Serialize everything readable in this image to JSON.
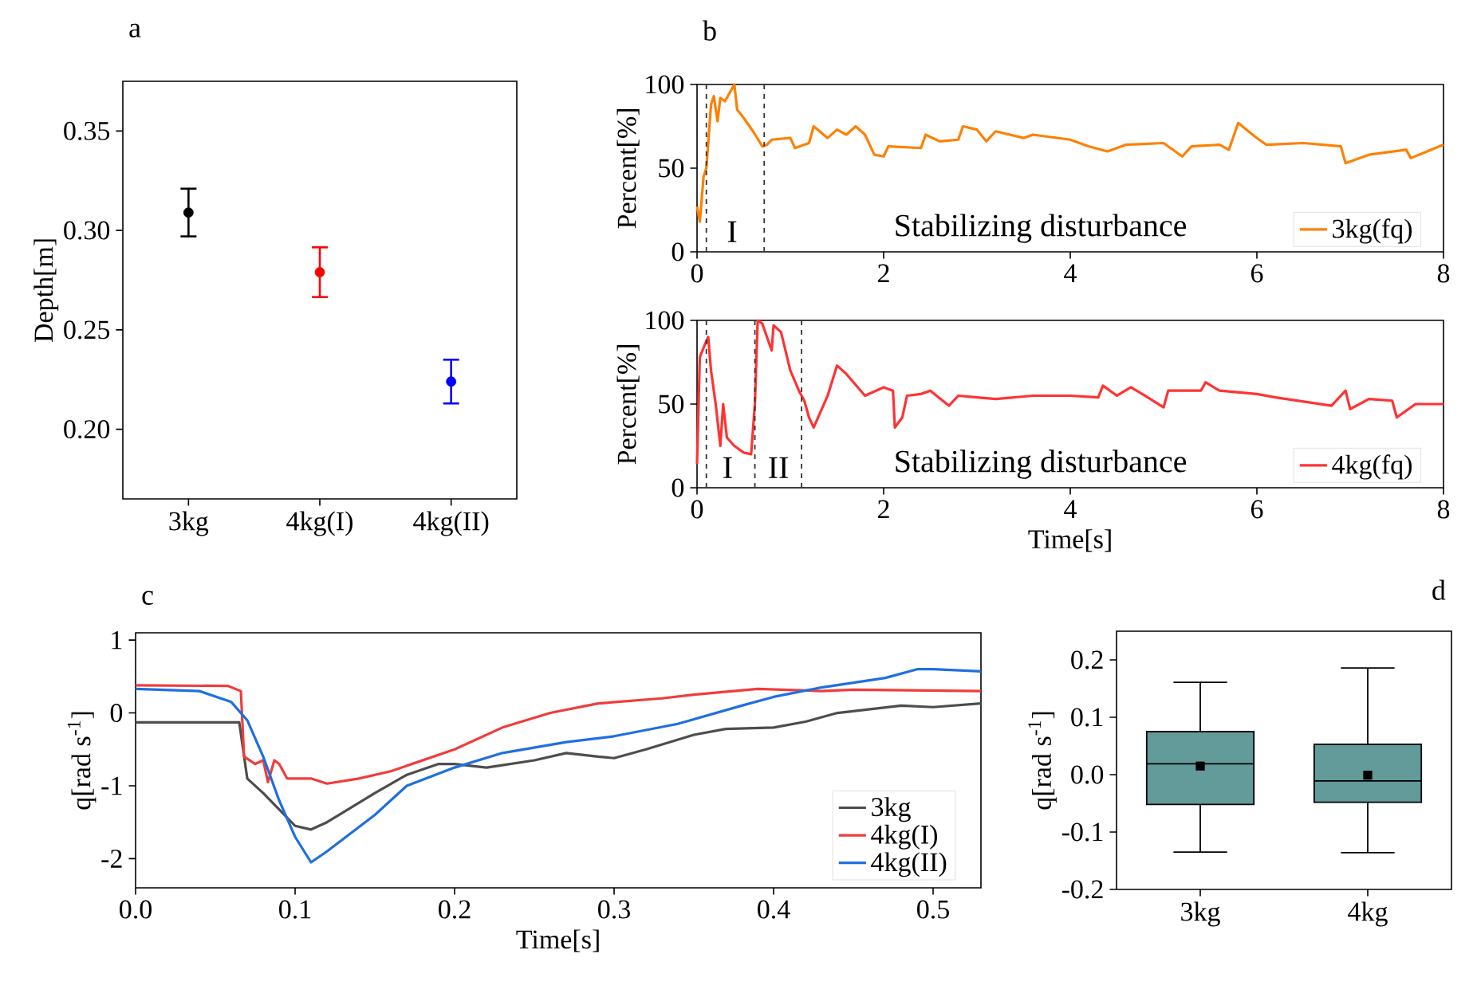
{
  "chart_data": [
    {
      "type": "scatter",
      "title": "a",
      "ylabel": "Depth[m]",
      "categories": [
        "3kg",
        "4kg(I)",
        "4kg(II)"
      ],
      "values": [
        0.309,
        0.279,
        0.224
      ],
      "colors": [
        "#000000",
        "#ff0000",
        "#0000ff"
      ],
      "errors": [
        0.012,
        0.0125,
        0.011
      ],
      "ylim": [
        0.165,
        0.375
      ],
      "yticks": [
        {
          "value": 0.2,
          "label": "0.20"
        },
        0.25,
        {
          "value": 0.3,
          "label": "0.30"
        },
        0.35
      ],
      "marker": "circle"
    },
    {
      "type": "line",
      "title": "b",
      "ylabel": "Percent[%]",
      "xlim": [
        0,
        8
      ],
      "ylim": [
        0,
        100
      ],
      "xticks": [
        0,
        2,
        4,
        6,
        8
      ],
      "yticks": [
        0,
        50,
        100
      ],
      "legend": "bottom right",
      "series": [
        {
          "name": "3kg(fq)",
          "color": "#ff8000",
          "x": [
            0,
            0.03,
            0.07,
            0.1,
            0.12,
            0.15,
            0.18,
            0.22,
            0.25,
            0.3,
            0.35,
            0.4,
            0.43,
            0.5,
            0.6,
            0.7,
            0.75,
            0.8,
            1.0,
            1.05,
            1.2,
            1.25,
            1.4,
            1.5,
            1.6,
            1.7,
            1.8,
            1.9,
            2.0,
            2.05,
            2.4,
            2.45,
            2.6,
            2.8,
            2.85,
            3.0,
            3.1,
            3.2,
            3.5,
            3.6,
            4.0,
            4.2,
            4.4,
            4.6,
            5.0,
            5.2,
            5.3,
            5.6,
            5.7,
            5.8,
            6.0,
            6.1,
            6.5,
            6.9,
            6.95,
            7.2,
            7.6,
            7.65,
            8.0
          ],
          "values": [
            27,
            18,
            45,
            50,
            65,
            88,
            93,
            78,
            92,
            90,
            95,
            100,
            85,
            80,
            72,
            63,
            64,
            67,
            68,
            62,
            65,
            75,
            68,
            73,
            70,
            75,
            70,
            58,
            57,
            63,
            62,
            70,
            66,
            67,
            75,
            73,
            66,
            72,
            68,
            70,
            67,
            63,
            60,
            64,
            65,
            57,
            63,
            64,
            61,
            77,
            68,
            64,
            65,
            63,
            53,
            58,
            61,
            56,
            64
          ]
        }
      ],
      "ref_lines": [
        {
          "axis": "x",
          "value": 0.1,
          "color": "#333333",
          "line_style": "dashed"
        },
        {
          "axis": "x",
          "value": 0.72,
          "color": "#333333",
          "line_style": "dashed"
        }
      ],
      "annotations": [
        "I",
        "Stabilizing disturbance"
      ]
    },
    {
      "type": "line",
      "xlabel": "Time[s]",
      "ylabel": "Percent[%]",
      "xlim": [
        0,
        8
      ],
      "ylim": [
        0,
        100
      ],
      "xticks": [
        0,
        2,
        4,
        6,
        8
      ],
      "yticks": [
        0,
        50,
        100
      ],
      "legend": "bottom right",
      "series": [
        {
          "name": "4kg(fq)",
          "color": "#ff3333",
          "x": [
            0,
            0.03,
            0.08,
            0.12,
            0.15,
            0.2,
            0.25,
            0.28,
            0.32,
            0.4,
            0.5,
            0.58,
            0.62,
            0.65,
            0.7,
            0.8,
            0.82,
            0.9,
            1.0,
            1.1,
            1.15,
            1.2,
            1.25,
            1.4,
            1.5,
            1.6,
            1.8,
            2.0,
            2.1,
            2.12,
            2.2,
            2.25,
            2.4,
            2.5,
            2.7,
            2.8,
            3.0,
            3.2,
            3.6,
            4.0,
            4.3,
            4.35,
            4.5,
            4.65,
            4.8,
            5.0,
            5.05,
            5.4,
            5.45,
            5.6,
            6.0,
            6.2,
            6.8,
            6.95,
            7.0,
            7.2,
            7.45,
            7.5,
            7.7,
            8.0
          ],
          "values": [
            14,
            78,
            85,
            90,
            70,
            50,
            25,
            50,
            30,
            25,
            21,
            20,
            50,
            100,
            98,
            82,
            97,
            93,
            70,
            57,
            52,
            42,
            36,
            55,
            73,
            68,
            55,
            60,
            58,
            36,
            42,
            55,
            56,
            58,
            49,
            55,
            54,
            53,
            55,
            55,
            54,
            61,
            55,
            60,
            55,
            48,
            58,
            58,
            63,
            58,
            56,
            54,
            49,
            58,
            47,
            53,
            52,
            42,
            50,
            50
          ]
        }
      ],
      "ref_lines": [
        {
          "axis": "x",
          "value": 0.1,
          "color": "#333333",
          "line_style": "dashed"
        },
        {
          "axis": "x",
          "value": 0.62,
          "color": "#333333",
          "line_style": "dashed"
        },
        {
          "axis": "x",
          "value": 1.12,
          "color": "#333333",
          "line_style": "dashed"
        }
      ],
      "annotations": [
        "I",
        "II",
        "Stabilizing disturbance"
      ]
    },
    {
      "type": "line",
      "title": "c",
      "xlabel": "Time[s]",
      "ylabel": "q[rad s$^{-1}$]",
      "xlim": [
        0,
        0.53
      ],
      "ylim": [
        -2.4,
        1.1
      ],
      "xticks": [
        {
          "value": 0,
          "label": "0.0"
        },
        0.1,
        0.2,
        0.3,
        0.4,
        0.5
      ],
      "yticks": [
        -2,
        -1,
        0,
        1
      ],
      "legend": "bottom right",
      "series": [
        {
          "name": "3kg",
          "color": "#4d4d4d",
          "x": [
            0,
            0.065,
            0.07,
            0.08,
            0.1,
            0.11,
            0.12,
            0.15,
            0.17,
            0.19,
            0.2,
            0.22,
            0.25,
            0.27,
            0.29,
            0.3,
            0.32,
            0.35,
            0.37,
            0.4,
            0.42,
            0.44,
            0.48,
            0.5,
            0.53
          ],
          "values": [
            -0.13,
            -0.13,
            -0.9,
            -1.1,
            -1.55,
            -1.6,
            -1.5,
            -1.1,
            -0.85,
            -0.7,
            -0.7,
            -0.75,
            -0.65,
            -0.55,
            -0.6,
            -0.62,
            -0.5,
            -0.3,
            -0.22,
            -0.2,
            -0.12,
            0.0,
            0.1,
            0.08,
            0.13
          ]
        },
        {
          "name": "4kg(I)",
          "color": "#f03c3c",
          "x": [
            0,
            0.058,
            0.066,
            0.068,
            0.075,
            0.08,
            0.083,
            0.087,
            0.09,
            0.095,
            0.11,
            0.12,
            0.14,
            0.16,
            0.2,
            0.23,
            0.26,
            0.29,
            0.33,
            0.35,
            0.39,
            0.43,
            0.45,
            0.53
          ],
          "values": [
            0.38,
            0.37,
            0.3,
            -0.6,
            -0.7,
            -0.65,
            -0.95,
            -0.65,
            -0.7,
            -0.9,
            -0.9,
            -0.97,
            -0.9,
            -0.8,
            -0.5,
            -0.2,
            0.0,
            0.13,
            0.2,
            0.25,
            0.33,
            0.3,
            0.32,
            0.3
          ]
        },
        {
          "name": "4kg(II)",
          "color": "#1f6fe0",
          "x": [
            0,
            0.04,
            0.06,
            0.07,
            0.08,
            0.09,
            0.1,
            0.11,
            0.12,
            0.15,
            0.17,
            0.2,
            0.23,
            0.27,
            0.3,
            0.34,
            0.38,
            0.4,
            0.43,
            0.47,
            0.49,
            0.5,
            0.53
          ],
          "values": [
            0.33,
            0.3,
            0.15,
            -0.1,
            -0.6,
            -1.2,
            -1.7,
            -2.05,
            -1.9,
            -1.4,
            -1.0,
            -0.75,
            -0.55,
            -0.4,
            -0.32,
            -0.15,
            0.1,
            0.22,
            0.35,
            0.48,
            0.6,
            0.6,
            0.57
          ]
        }
      ]
    },
    {
      "type": "box",
      "title": "d",
      "ylabel": "q[rad s$^{-1}$]",
      "categories": [
        "3kg",
        "4kg"
      ],
      "color": "#639a9a",
      "ylim": [
        -0.2,
        0.25
      ],
      "yticks": [
        -0.2,
        -0.1,
        {
          "value": 0,
          "label": "0.0"
        },
        0.1,
        0.2
      ],
      "boxes": [
        {
          "low": -0.135,
          "q1": -0.052,
          "median": 0.019,
          "q3": 0.075,
          "high": 0.161,
          "mean": 0.015
        },
        {
          "low": -0.136,
          "q1": -0.048,
          "median": -0.011,
          "q3": 0.053,
          "high": 0.186,
          "mean": -0.001
        }
      ]
    }
  ]
}
